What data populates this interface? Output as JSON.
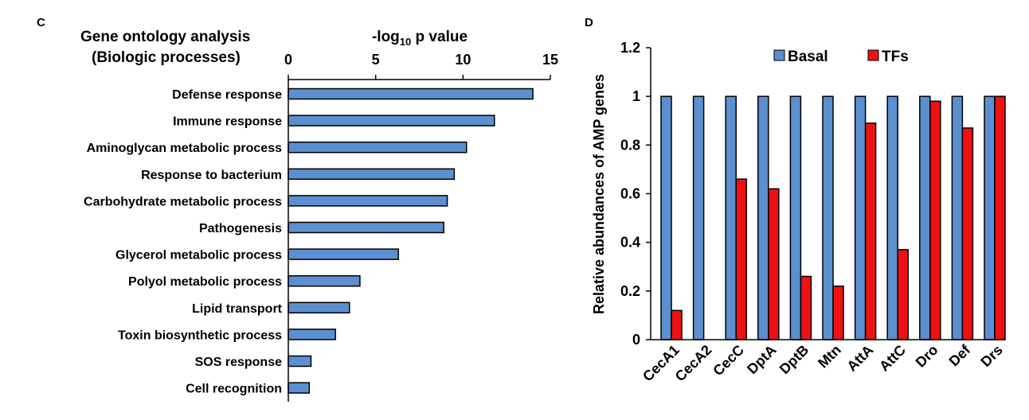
{
  "chart_data": [
    {
      "panel_label": "C",
      "type": "bar",
      "orientation": "horizontal",
      "title_line1": "Gene ontology analysis",
      "title_line2": "(Biologic processes)",
      "xlabel_prefix": "-log",
      "xlabel_sub": "10",
      "xlabel_suffix": " p value",
      "xlim": [
        0,
        15
      ],
      "ticks": [
        "0",
        "5",
        "10",
        "15"
      ],
      "tick_values": [
        0,
        5,
        10,
        15
      ],
      "bar_color": "#5b8fd0",
      "categories": [
        "Defense response",
        "Immune response",
        "Aminoglycan metabolic process",
        "Response to bacterium",
        "Carbohydrate metabolic process",
        "Pathogenesis",
        "Glycerol metabolic process",
        "Polyol metabolic process",
        "Lipid transport",
        "Toxin biosynthetic process",
        "SOS response",
        "Cell recognition"
      ],
      "values": [
        14.0,
        11.8,
        10.2,
        9.5,
        9.1,
        8.9,
        6.3,
        4.1,
        3.5,
        2.7,
        1.3,
        1.2
      ]
    },
    {
      "panel_label": "D",
      "type": "bar",
      "orientation": "vertical",
      "ylabel": "Relative abundances of AMP genes",
      "ylim": [
        0,
        1.2
      ],
      "yticks": [
        "0",
        "0.2",
        "0.4",
        "0.6",
        "0.8",
        "1",
        "1.2"
      ],
      "ytick_values": [
        0,
        0.2,
        0.4,
        0.6,
        0.8,
        1.0,
        1.2
      ],
      "categories": [
        "CecA1",
        "CecA2",
        "CecC",
        "DptA",
        "DptB",
        "Mtn",
        "AttA",
        "AttC",
        "Dro",
        "Def",
        "Drs"
      ],
      "series": [
        {
          "name": "Basal",
          "color": "#5b8fd0",
          "values": [
            1,
            1,
            1,
            1,
            1,
            1,
            1,
            1,
            1,
            1,
            1
          ]
        },
        {
          "name": "TFs",
          "color": "#ee1111",
          "values": [
            0.12,
            0.0,
            0.66,
            0.62,
            0.26,
            0.22,
            0.89,
            0.37,
            0.98,
            0.87,
            1.0
          ]
        }
      ]
    }
  ]
}
